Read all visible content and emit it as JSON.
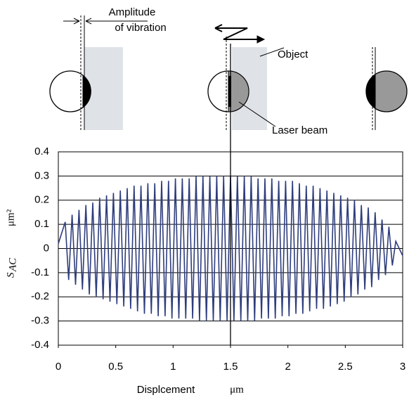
{
  "chart_data": {
    "type": "line",
    "annotations": {
      "amplitude_1": "Amplitude",
      "amplitude_2": "of vibration",
      "object": "Object",
      "laser": "Laser beam"
    },
    "x_label": "Displcement",
    "x_unit": "μm",
    "y_label": "S",
    "y_label_sub": "AC",
    "y_unit": "μm²",
    "color": "#2e3d7c",
    "vline_x": 1.5,
    "x": [
      0,
      0.06,
      0.09,
      0.12,
      0.15,
      0.18,
      0.21,
      0.24,
      0.27,
      0.3,
      0.33,
      0.36,
      0.39,
      0.42,
      0.45,
      0.48,
      0.51,
      0.54,
      0.57,
      0.6,
      0.63,
      0.66,
      0.69,
      0.72,
      0.75,
      0.78,
      0.81,
      0.84,
      0.87,
      0.9,
      0.93,
      0.96,
      0.99,
      1.02,
      1.05,
      1.08,
      1.11,
      1.14,
      1.17,
      1.2,
      1.23,
      1.26,
      1.29,
      1.32,
      1.35,
      1.38,
      1.41,
      1.44,
      1.47,
      1.5,
      1.53,
      1.56,
      1.59,
      1.62,
      1.65,
      1.68,
      1.71,
      1.74,
      1.77,
      1.8,
      1.83,
      1.86,
      1.89,
      1.92,
      1.95,
      1.98,
      2.01,
      2.04,
      2.07,
      2.1,
      2.13,
      2.16,
      2.19,
      2.22,
      2.25,
      2.28,
      2.31,
      2.34,
      2.37,
      2.4,
      2.43,
      2.46,
      2.49,
      2.52,
      2.55,
      2.58,
      2.61,
      2.64,
      2.67,
      2.7,
      2.73,
      2.76,
      2.79,
      2.82,
      2.85,
      2.88,
      2.91,
      2.94,
      3
    ],
    "values": [
      0.02,
      0.11,
      -0.13,
      0.14,
      -0.15,
      0.16,
      -0.17,
      0.18,
      -0.19,
      0.19,
      -0.2,
      0.21,
      -0.21,
      0.22,
      -0.22,
      0.23,
      -0.23,
      0.24,
      -0.24,
      0.25,
      -0.25,
      0.26,
      -0.26,
      0.26,
      -0.27,
      0.27,
      -0.27,
      0.27,
      -0.28,
      0.28,
      -0.28,
      0.28,
      -0.29,
      0.29,
      -0.29,
      0.29,
      -0.29,
      0.29,
      -0.29,
      0.3,
      -0.3,
      0.3,
      -0.3,
      0.3,
      -0.3,
      0.3,
      -0.3,
      0.3,
      -0.3,
      0.3,
      -0.3,
      0.3,
      -0.3,
      0.3,
      -0.3,
      0.3,
      -0.3,
      0.29,
      -0.29,
      0.29,
      -0.29,
      0.29,
      -0.29,
      0.28,
      -0.28,
      0.28,
      -0.28,
      0.28,
      -0.27,
      0.27,
      -0.27,
      0.26,
      -0.26,
      0.26,
      -0.25,
      0.25,
      -0.25,
      0.24,
      -0.24,
      0.23,
      -0.23,
      0.22,
      -0.22,
      0.21,
      -0.2,
      0.2,
      -0.19,
      0.18,
      -0.17,
      0.17,
      -0.16,
      0.15,
      -0.13,
      0.12,
      -0.11,
      0.09,
      -0.07,
      0.03,
      -0.03
    ],
    "xlim": [
      0,
      3
    ],
    "ylim": [
      -0.4,
      0.4
    ],
    "xticks": [
      0,
      0.5,
      1,
      1.5,
      2,
      2.5,
      3
    ],
    "yticks": [
      0.4,
      0.3,
      0.2,
      0.1,
      0,
      -0.1,
      -0.2,
      -0.3,
      -0.4
    ],
    "grid": true
  }
}
